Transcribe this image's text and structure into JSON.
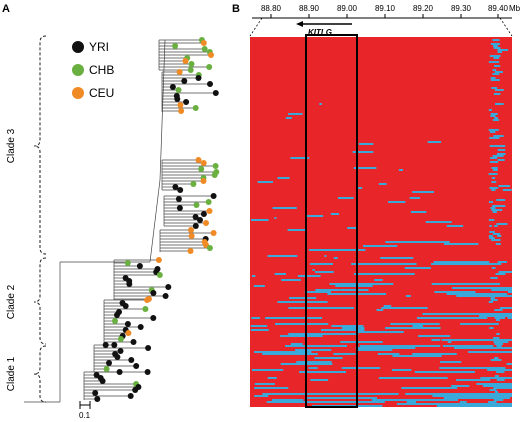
{
  "panels": {
    "a": {
      "label": "A"
    },
    "b": {
      "label": "B"
    }
  },
  "legend": {
    "items": [
      {
        "name": "YRI",
        "color": "#111111"
      },
      {
        "name": "CHB",
        "color": "#6ab040"
      },
      {
        "name": "CEU",
        "color": "#f08a24"
      }
    ]
  },
  "clades": [
    {
      "label": "Clade 3"
    },
    {
      "label": "Clade 2"
    },
    {
      "label": "Clade 1"
    }
  ],
  "scale_bar": {
    "label": "0.1"
  },
  "genome_axis": {
    "ticks": [
      "88.80",
      "88.90",
      "89.00",
      "89.10",
      "89.20",
      "89.30",
      "89.40"
    ],
    "unit": "Mb"
  },
  "gene": {
    "label": "KITLG"
  },
  "colors": {
    "heatmap_major": "#e8262a",
    "heatmap_minor": "#3aa8d8",
    "tree_line": "#444444"
  }
}
